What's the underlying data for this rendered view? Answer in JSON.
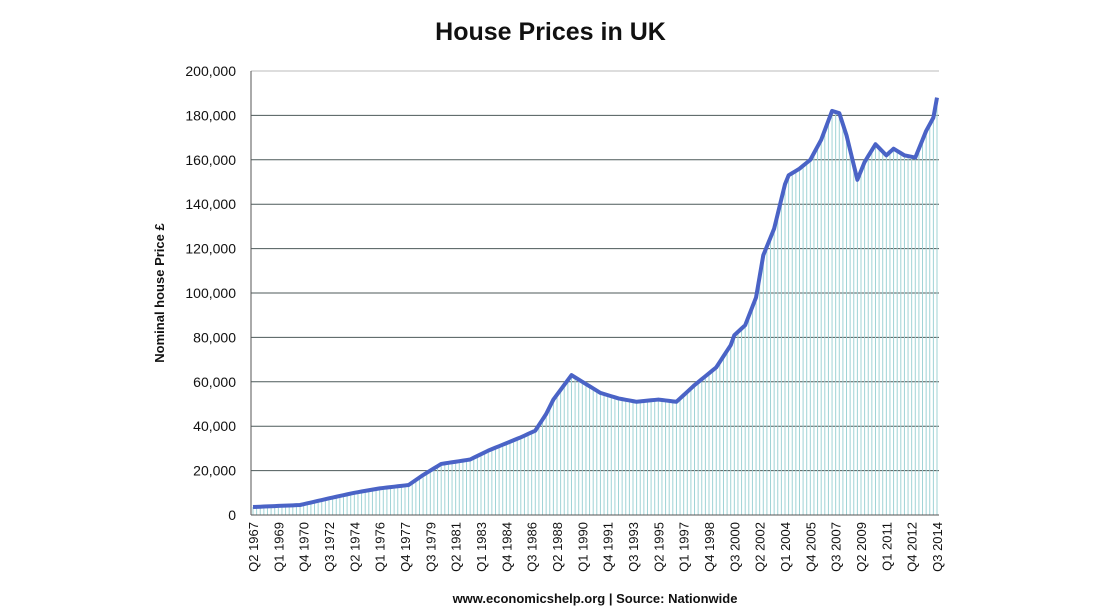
{
  "chart_data": {
    "type": "area",
    "title": "House Prices in UK",
    "ylabel": "Nominal house Price £",
    "xlabel": "",
    "footer": "www.economicshelp.org | Source: Nationwide",
    "ylim": [
      0,
      200000
    ],
    "yticks": [
      0,
      20000,
      40000,
      60000,
      80000,
      100000,
      120000,
      140000,
      160000,
      180000,
      200000
    ],
    "ytick_labels": [
      "0",
      "20,000",
      "40,000",
      "60,000",
      "80,000",
      "100,000",
      "120,000",
      "140,000",
      "160,000",
      "180,000",
      "200,000"
    ],
    "grid": true,
    "x_start": "Q2 1967",
    "x_end": "Q3 2014",
    "n_quarters": 190,
    "xtick_labels": [
      "Q2 1967",
      "Q1 1969",
      "Q4 1970",
      "Q3 1972",
      "Q2 1974",
      "Q1 1976",
      "Q4 1977",
      "Q3 1979",
      "Q2 1981",
      "Q1 1983",
      "Q4 1984",
      "Q3 1986",
      "Q2 1988",
      "Q1 1990",
      "Q4 1991",
      "Q3 1993",
      "Q2 1995",
      "Q1 1997",
      "Q4 1998",
      "Q3 2000",
      "Q2 2002",
      "Q1 2004",
      "Q4 2005",
      "Q3 2007",
      "Q2 2009",
      "Q1 2011",
      "Q4 2012",
      "Q3 2014"
    ],
    "series": [
      {
        "name": "Nominal house price",
        "color": "#4a63c6",
        "fill_color": "#9fd3d6",
        "points_quarter_index_value": [
          [
            0,
            3600
          ],
          [
            13,
            4500
          ],
          [
            21,
            7500
          ],
          [
            28,
            10000
          ],
          [
            35,
            12000
          ],
          [
            43,
            13500
          ],
          [
            47,
            18000
          ],
          [
            52,
            23000
          ],
          [
            60,
            25000
          ],
          [
            65,
            29000
          ],
          [
            74,
            35000
          ],
          [
            78,
            38000
          ],
          [
            81,
            45500
          ],
          [
            83,
            52000
          ],
          [
            88,
            63000
          ],
          [
            90,
            61000
          ],
          [
            96,
            55000
          ],
          [
            101,
            52500
          ],
          [
            106,
            51000
          ],
          [
            112,
            52000
          ],
          [
            117,
            51000
          ],
          [
            122,
            58500
          ],
          [
            128,
            66500
          ],
          [
            132,
            76500
          ],
          [
            133,
            81000
          ],
          [
            136,
            85500
          ],
          [
            139,
            98000
          ],
          [
            141,
            117000
          ],
          [
            144,
            129000
          ],
          [
            147,
            149000
          ],
          [
            148,
            153000
          ],
          [
            151,
            156000
          ],
          [
            154,
            160000
          ],
          [
            157,
            169000
          ],
          [
            160,
            182000
          ],
          [
            162,
            181000
          ],
          [
            164,
            171000
          ],
          [
            167,
            151000
          ],
          [
            169,
            159000
          ],
          [
            172,
            167000
          ],
          [
            175,
            162000
          ],
          [
            177,
            165000
          ],
          [
            180,
            162000
          ],
          [
            183,
            161000
          ],
          [
            186,
            173000
          ],
          [
            188,
            179000
          ],
          [
            189,
            188000
          ]
        ]
      }
    ]
  }
}
